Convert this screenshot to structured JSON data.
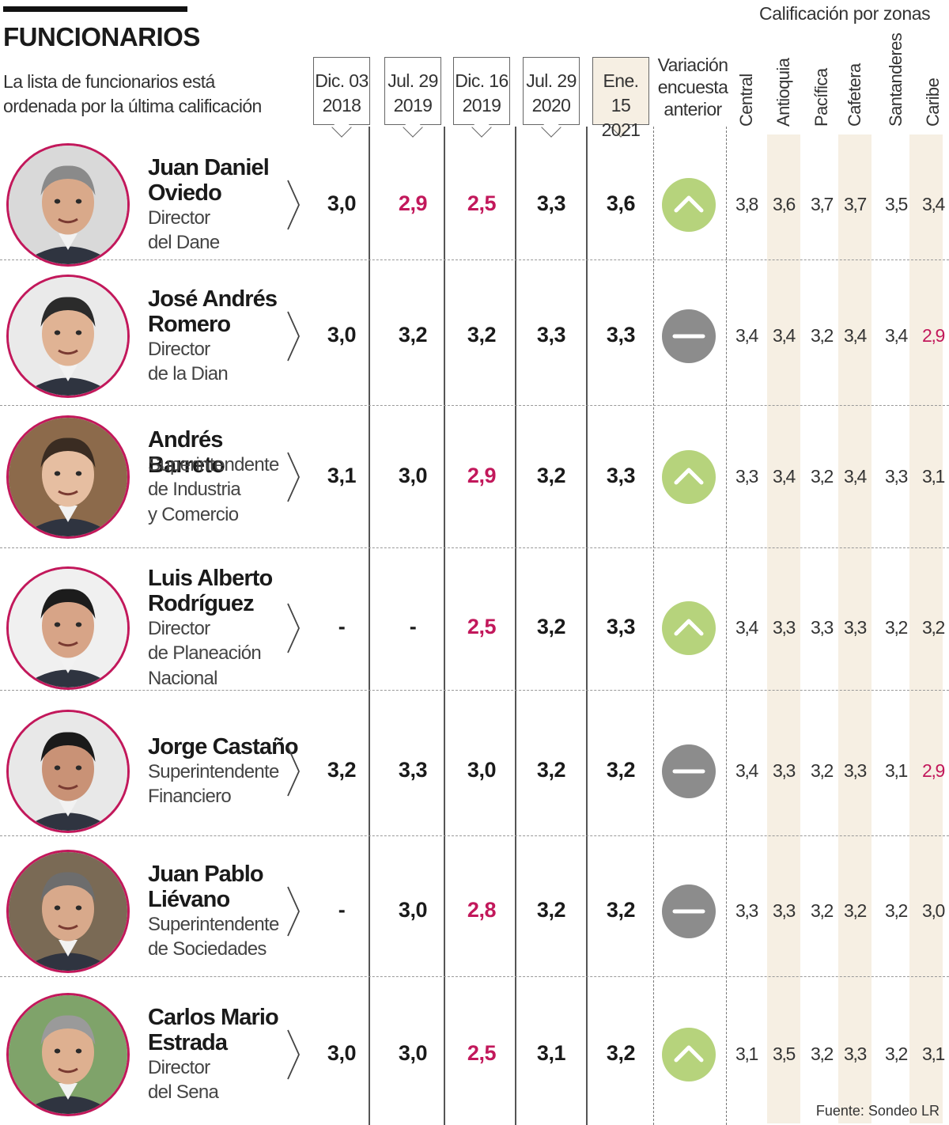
{
  "header": {
    "title": "FUNCIONARIOS",
    "subtitle": "La lista de funcionarios está ordenada por la última calificación",
    "zones_title": "Calificación por zonas",
    "variation_header": "Variación encuesta anterior",
    "source": "Fuente: Sondeo LR"
  },
  "chart_data": {
    "type": "table",
    "title": "FUNCIONARIOS",
    "survey_dates": [
      {
        "line1": "Dic. 03",
        "line2": "2018"
      },
      {
        "line1": "Jul. 29",
        "line2": "2019"
      },
      {
        "line1": "Dic. 16",
        "line2": "2019"
      },
      {
        "line1": "Jul. 29",
        "line2": "2020"
      },
      {
        "line1": "Ene. 15",
        "line2": "2021"
      }
    ],
    "zones": [
      "Central",
      "Antioquia",
      "Pacífica",
      "Cafetera",
      "Santanderes",
      "Caribe"
    ],
    "low_threshold": 3.0,
    "colors": {
      "low": "#c2185b",
      "up": "#b6d37c",
      "same": "#8c8c8c",
      "highlight": "#f6efe3"
    },
    "people": [
      {
        "name": "Juan Daniel Oviedo",
        "role": "Director\ndel Dane",
        "scores": [
          "3,0",
          "2,9",
          "2,5",
          "3,3",
          "3,6"
        ],
        "variation": "up",
        "zones": [
          "3,8",
          "3,6",
          "3,7",
          "3,7",
          "3,5",
          "3,4"
        ]
      },
      {
        "name": "José Andrés Romero",
        "role": "Director\nde la Dian",
        "scores": [
          "3,0",
          "3,2",
          "3,2",
          "3,3",
          "3,3"
        ],
        "variation": "same",
        "zones": [
          "3,4",
          "3,4",
          "3,2",
          "3,4",
          "3,4",
          "2,9"
        ]
      },
      {
        "name": "Andrés Barreto",
        "role": "Superintendente\nde Industria\ny Comercio",
        "scores": [
          "3,1",
          "3,0",
          "2,9",
          "3,2",
          "3,3"
        ],
        "variation": "up",
        "zones": [
          "3,3",
          "3,4",
          "3,2",
          "3,4",
          "3,3",
          "3,1"
        ]
      },
      {
        "name": "Luis Alberto Rodríguez",
        "role": "Director\nde Planeación\nNacional",
        "scores": [
          "-",
          "-",
          "2,5",
          "3,2",
          "3,3"
        ],
        "variation": "up",
        "zones": [
          "3,4",
          "3,3",
          "3,3",
          "3,3",
          "3,2",
          "3,2"
        ]
      },
      {
        "name": "Jorge Castaño",
        "role": "Superintendente\nFinanciero",
        "scores": [
          "3,2",
          "3,3",
          "3,0",
          "3,2",
          "3,2"
        ],
        "variation": "same",
        "zones": [
          "3,4",
          "3,3",
          "3,2",
          "3,3",
          "3,1",
          "2,9"
        ]
      },
      {
        "name": "Juan Pablo Liévano",
        "role": "Superintendente\nde Sociedades",
        "scores": [
          "-",
          "3,0",
          "2,8",
          "3,2",
          "3,2"
        ],
        "variation": "same",
        "zones": [
          "3,3",
          "3,3",
          "3,2",
          "3,2",
          "3,2",
          "3,0"
        ]
      },
      {
        "name": "Carlos Mario Estrada",
        "role": "Director\ndel Sena",
        "scores": [
          "3,0",
          "3,0",
          "2,5",
          "3,1",
          "3,2"
        ],
        "variation": "up",
        "zones": [
          "3,1",
          "3,5",
          "3,2",
          "3,3",
          "3,2",
          "3,1"
        ]
      }
    ]
  }
}
